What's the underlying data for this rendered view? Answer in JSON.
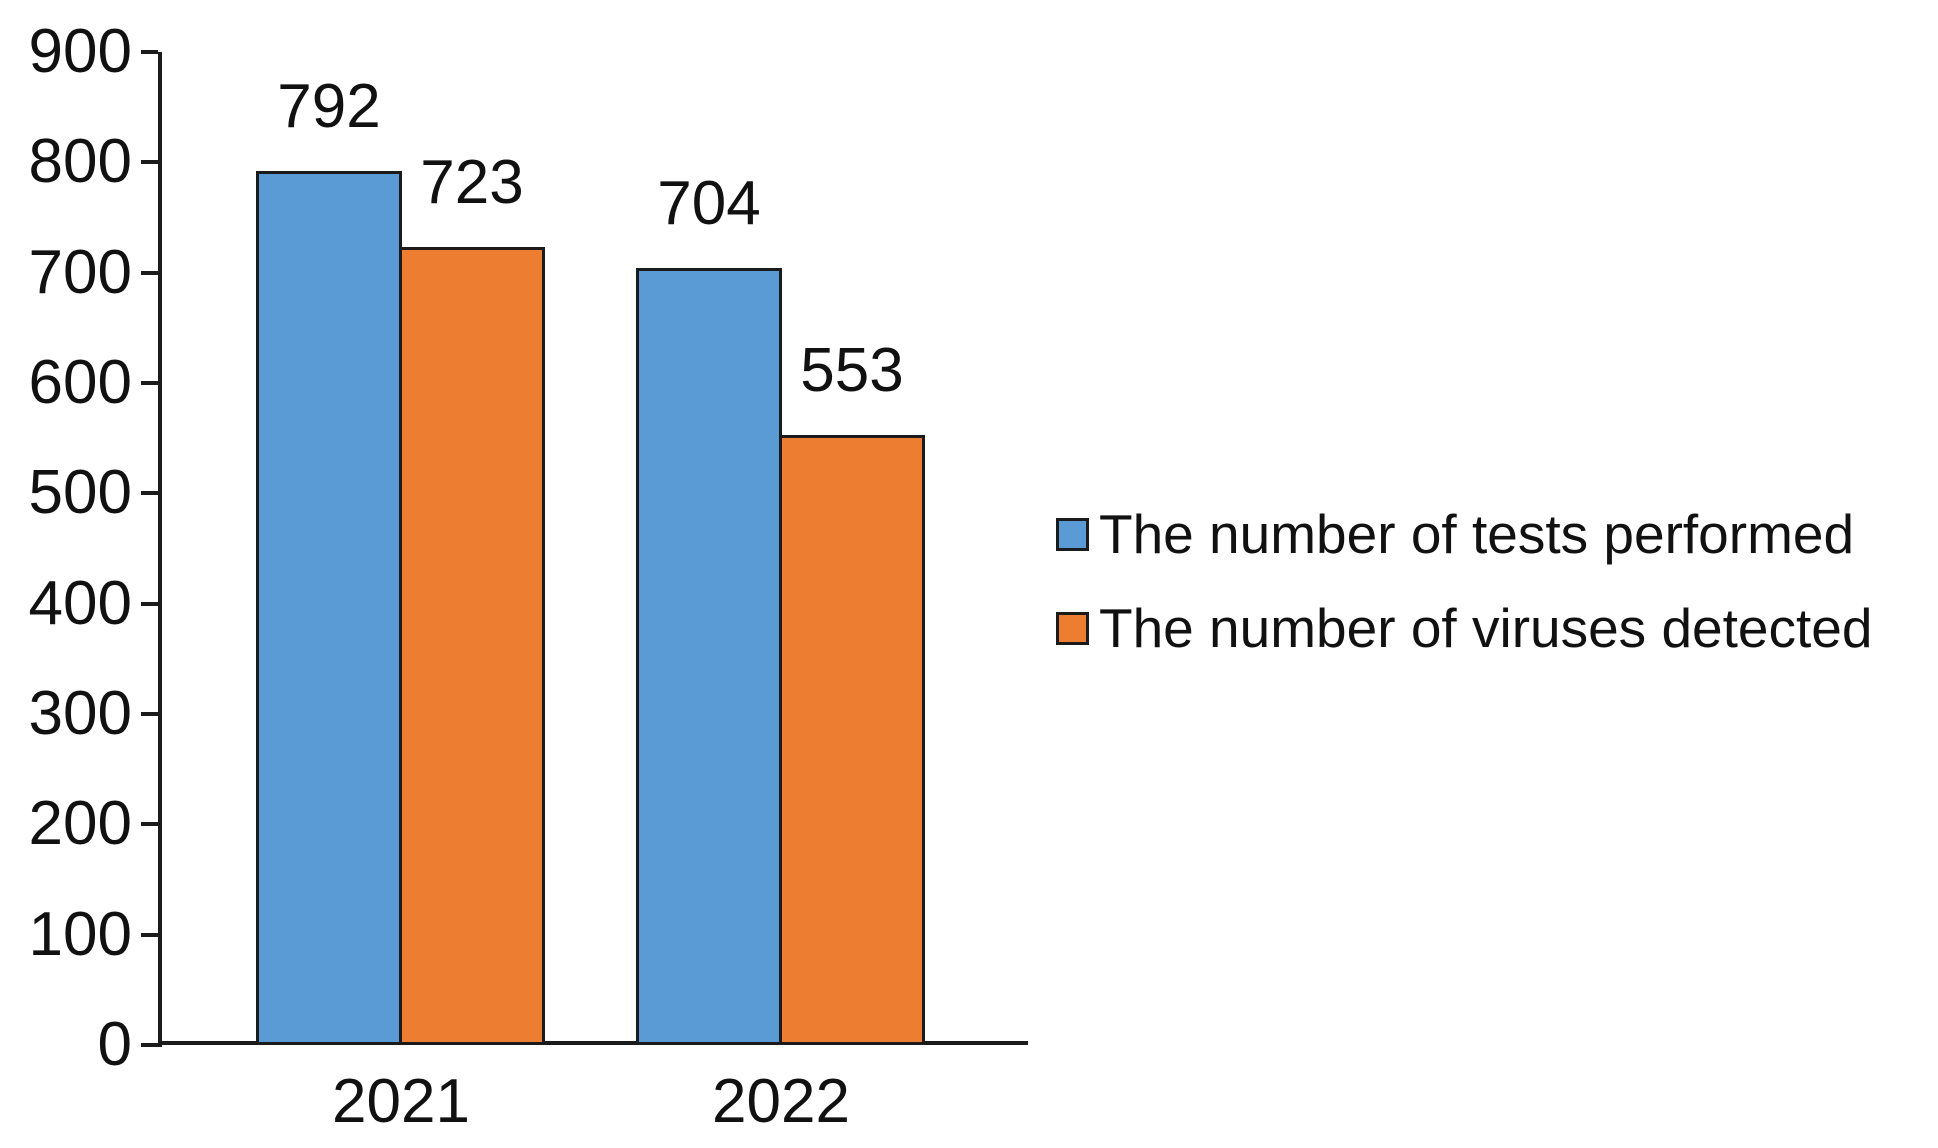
{
  "chart_data": {
    "type": "bar",
    "categories": [
      "2021",
      "2022"
    ],
    "series": [
      {
        "name": "The number of tests performed",
        "color": "#5B9BD5",
        "values": [
          792,
          704
        ]
      },
      {
        "name": "The number of viruses detected",
        "color": "#ED7D31",
        "values": [
          723,
          553
        ]
      }
    ],
    "ylim": [
      0,
      900
    ],
    "ytick_step": 100,
    "yticks": [
      "900",
      "800",
      "700",
      "600",
      "500",
      "400",
      "300",
      "200",
      "100",
      "0"
    ],
    "grid": false,
    "data_labels": true,
    "legend_position": "right-middle",
    "bar_outline_color": "#1b1b1b",
    "axis_color": "#1b1b1b",
    "text_color": "#111111",
    "background": "#ffffff"
  }
}
